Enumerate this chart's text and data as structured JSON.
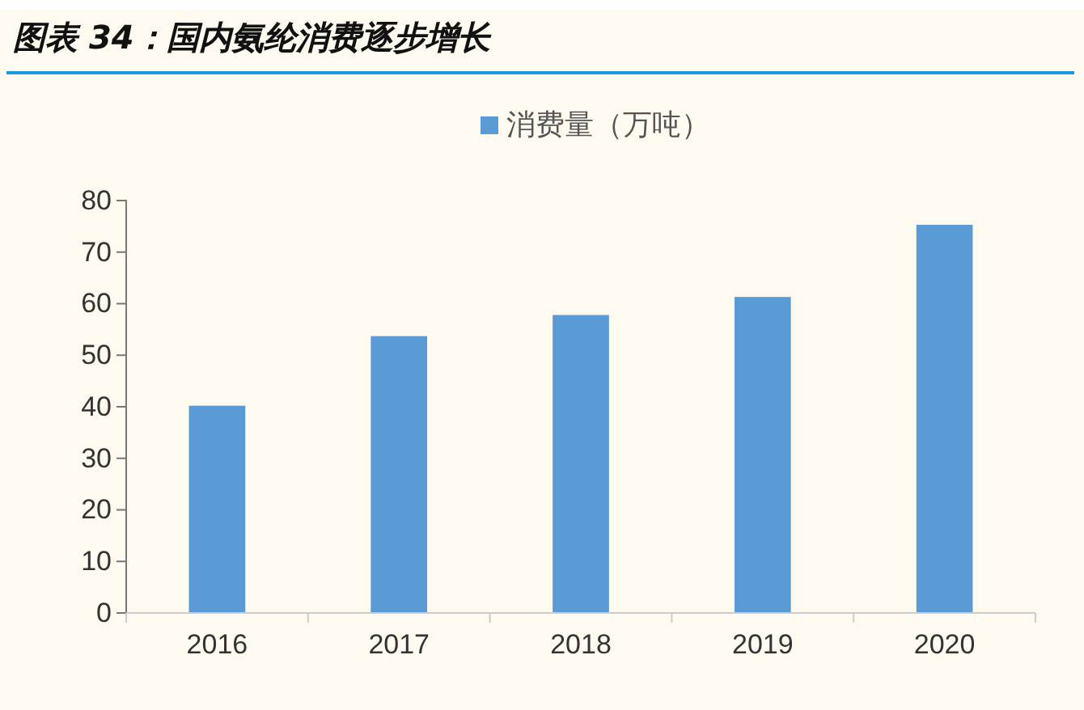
{
  "chart_data": {
    "type": "bar",
    "title": "图表 34：国内氨纶消费逐步增长",
    "categories": [
      "2016",
      "2017",
      "2018",
      "2019",
      "2020"
    ],
    "series": [
      {
        "name": "消费量（万吨）",
        "color": "#5b9bd5",
        "values": [
          40.2,
          53.7,
          57.8,
          61.3,
          75.3
        ]
      }
    ],
    "ylim": [
      0,
      80
    ],
    "yticks": [
      0,
      10,
      20,
      30,
      40,
      50,
      60,
      70,
      80
    ],
    "grid": false,
    "legend": "top"
  }
}
